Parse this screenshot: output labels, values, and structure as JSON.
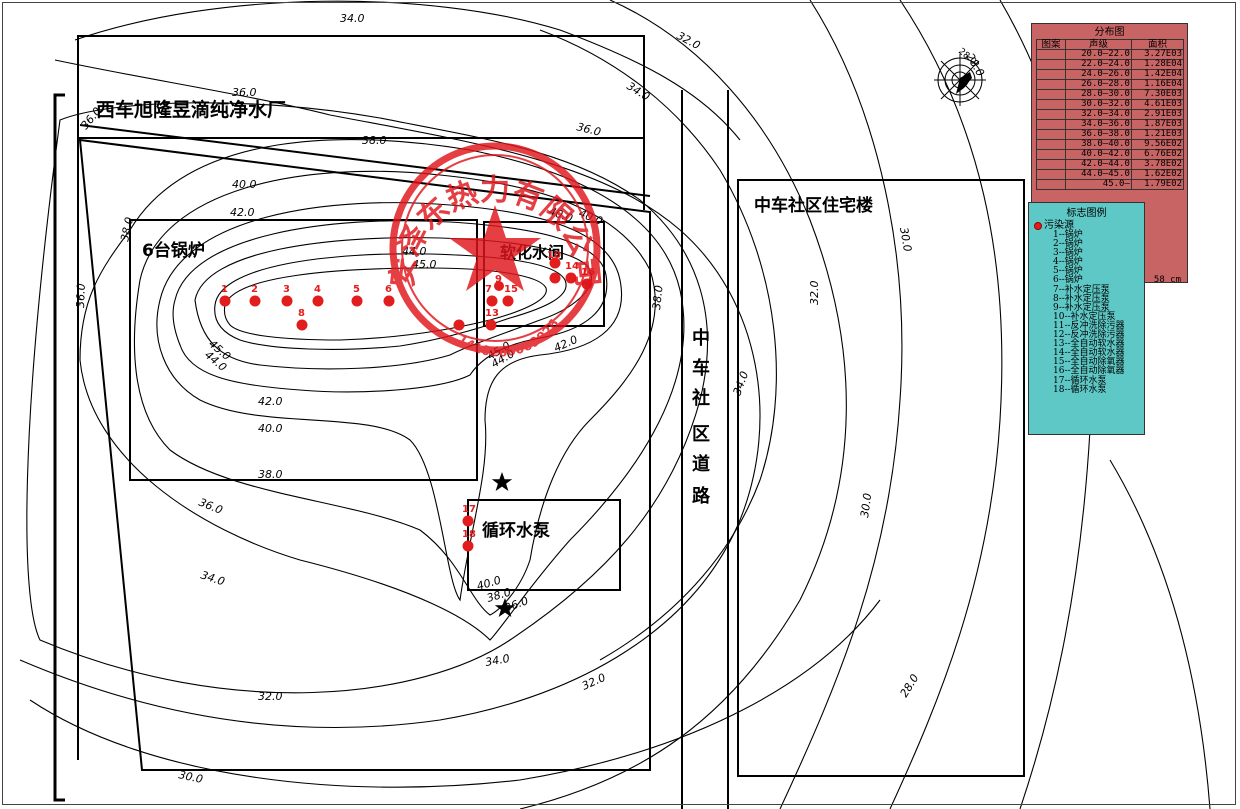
{
  "map": {
    "buildings": {
      "water_plant": "西车旭隆昱滴纯净水厂",
      "boiler_room": "6台锅炉",
      "softener": "软化水间",
      "pump_room": "循环水泵",
      "residential": "中车社区住宅楼",
      "road": [
        "中",
        "车",
        "社",
        "区",
        "道",
        "路"
      ]
    },
    "contour_labels": [
      {
        "text": "34.0"
      },
      {
        "text": "32.0"
      },
      {
        "text": "34.0"
      },
      {
        "text": "36.0"
      },
      {
        "text": "36.0"
      },
      {
        "text": "38.0"
      },
      {
        "text": "40.0"
      },
      {
        "text": "42.0"
      },
      {
        "text": "44.0"
      },
      {
        "text": "45.0"
      },
      {
        "text": "40.0"
      },
      {
        "text": "38.0"
      },
      {
        "text": "45.0"
      },
      {
        "text": "44.0"
      },
      {
        "text": "42.0"
      },
      {
        "text": "40.0"
      },
      {
        "text": "38.0"
      },
      {
        "text": "36.0"
      },
      {
        "text": "34.0"
      },
      {
        "text": "32.0"
      },
      {
        "text": "30.0"
      },
      {
        "text": "45.0"
      },
      {
        "text": "44.0"
      },
      {
        "text": "42.0"
      },
      {
        "text": "40.0"
      },
      {
        "text": "38.0"
      },
      {
        "text": "36.0"
      },
      {
        "text": "34.0"
      },
      {
        "text": "32.0"
      },
      {
        "text": "30.0"
      },
      {
        "text": "28.0"
      },
      {
        "text": "40.0"
      },
      {
        "text": "38.0"
      },
      {
        "text": "36.0"
      },
      {
        "text": "34.0"
      },
      {
        "text": "30.0"
      },
      {
        "text": "28.0"
      },
      {
        "text": "32.0"
      },
      {
        "text": "36.0"
      }
    ],
    "sources": [
      "1",
      "2",
      "3",
      "4",
      "5",
      "6",
      "8",
      "7",
      "9",
      "13",
      "15",
      "10",
      "14",
      "16",
      "17",
      "18",
      "11",
      "12"
    ],
    "compass_label": "28.0",
    "stamp": {
      "name": "安泽东热力有限公司",
      "code": "1410260009026"
    }
  },
  "distribution": {
    "title": "分布图",
    "headers": [
      "图案",
      "声级",
      "面积"
    ],
    "rows": [
      {
        "range": "20.0—22.0",
        "area": "3.27E03",
        "color": "#c96464"
      },
      {
        "range": "22.0—24.0",
        "area": "1.28E04",
        "color": "#c96464"
      },
      {
        "range": "24.0—26.0",
        "area": "1.42E04",
        "color": "#c96464"
      },
      {
        "range": "26.0—28.0",
        "area": "1.16E04",
        "color": "#c96464"
      },
      {
        "range": "28.0—30.0",
        "area": "7.30E03",
        "color": "#c96464"
      },
      {
        "range": "30.0—32.0",
        "area": "4.61E03",
        "color": "#c96464"
      },
      {
        "range": "32.0—34.0",
        "area": "2.91E03",
        "color": "#c96464"
      },
      {
        "range": "34.0—36.0",
        "area": "1.87E03",
        "color": "#c96464"
      },
      {
        "range": "36.0—38.0",
        "area": "1.21E03",
        "color": "#c96464"
      },
      {
        "range": "38.0—40.0",
        "area": "9.56E02",
        "color": "#c96464"
      },
      {
        "range": "40.0—42.0",
        "area": "6.76E02",
        "color": "#c96464"
      },
      {
        "range": "42.0—44.0",
        "area": "3.78E02",
        "color": "#c96464"
      },
      {
        "range": "44.0—45.0",
        "area": "1.62E02",
        "color": "#c96464"
      },
      {
        "range": "45.0—",
        "area": "1.79E02",
        "color": "#c96464"
      }
    ],
    "unit": "58 cm"
  },
  "legend": {
    "title": "标志图例",
    "header": "污染源",
    "items": [
      "1--锅炉",
      "2--锅炉",
      "3--锅炉",
      "4--锅炉",
      "5--锅炉",
      "6--锅炉",
      "7--补水定压泵",
      "8--补水定压泵",
      "9--补水定压泵",
      "10--补水定压泵",
      "11--反冲洗除污器",
      "12--反冲洗除污器",
      "13--全自动软水器",
      "14--全自动软水器",
      "15--全自动除氧器",
      "16--全自动除氧器",
      "17--循环水泵",
      "18--循环水泵"
    ],
    "dot_color": "#e21d1d"
  }
}
